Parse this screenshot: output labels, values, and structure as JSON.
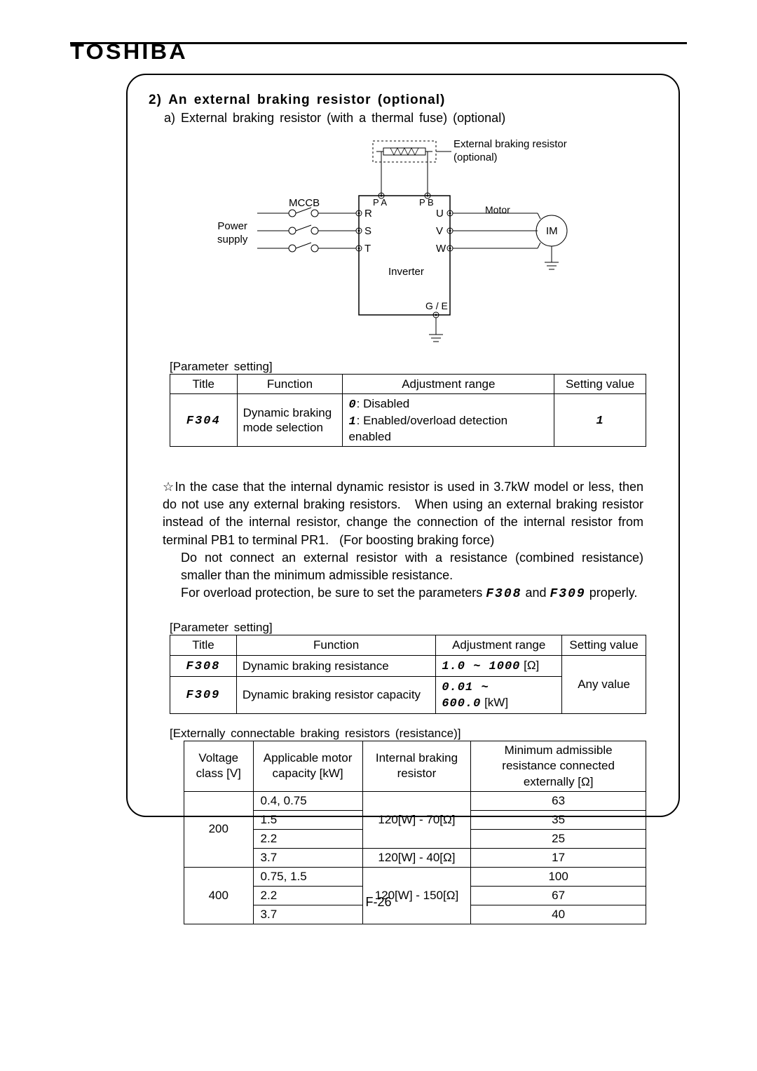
{
  "brand": "TOSHIBA",
  "section": {
    "num": "2)",
    "title": "An external braking resistor (optional)",
    "sub": "a) External braking resistor (with a thermal fuse) (optional)"
  },
  "diagram": {
    "power_supply": "Power\nsupply",
    "mccb": "MCCB",
    "r": "R",
    "s": "S",
    "t": "T",
    "u": "U",
    "v": "V",
    "w": "W",
    "pa": "P A",
    "pb": "P B",
    "inverter": "Inverter",
    "ge": "G / E",
    "motor": "Motor",
    "im": "IM",
    "ext_label": "External braking resistor (optional)",
    "colors": {
      "line": "#000000",
      "dash": "#000000"
    }
  },
  "param1_label": "[Parameter setting]",
  "param1": {
    "headers": [
      "Title",
      "Function",
      "Adjustment range",
      "Setting value"
    ],
    "title": "F304",
    "function": "Dynamic braking mode selection",
    "range_line1_code": "0",
    "range_line1_rest": ": Disabled",
    "range_line2_code": "1",
    "range_line2_rest": ": Enabled/overload detection enabled",
    "setting": "1"
  },
  "note": {
    "star": "☆",
    "p1": "In the case that the internal dynamic resistor is used in 3.7kW model or less, then do not use any external braking resistors.   When using an external braking resistor instead of the internal resistor, change the connection of the internal resistor from terminal PB1 to terminal PR1.   (For boosting braking force)",
    "p2": "Do not connect an external resistor with a resistance (combined resistance) smaller than the minimum admissible resistance.",
    "p3a": "For overload protection, be sure to set the parameters ",
    "p3code1": "F308",
    "p3mid": " and ",
    "p3code2": "F309",
    "p3b": " properly."
  },
  "param2_label": "[Parameter setting]",
  "param2": {
    "headers": [
      "Title",
      "Function",
      "Adjustment range",
      "Setting value"
    ],
    "rows": [
      {
        "title": "F308",
        "function": "Dynamic braking resistance",
        "range": "1.0 ~ 1000",
        "unit": "[Ω]"
      },
      {
        "title": "F309",
        "function": "Dynamic braking resistor capacity",
        "range": "0.01 ~ 600.0",
        "unit": "[kW]"
      }
    ],
    "setting": "Any value"
  },
  "reslabel": "[Externally connectable braking resistors (resistance)]",
  "restable": {
    "headers": [
      "Voltage class [V]",
      "Applicable motor capacity [kW]",
      "Internal braking resistor",
      "Minimum admissible resistance connected externally [Ω]"
    ],
    "groups": [
      {
        "voltage": "200",
        "rows": [
          {
            "cap": "0.4, 0.75",
            "int": "120[W] - 70[Ω]",
            "min": "63",
            "int_span": 3
          },
          {
            "cap": "1.5",
            "int": null,
            "min": "35"
          },
          {
            "cap": "2.2",
            "int": null,
            "min": "25"
          },
          {
            "cap": "3.7",
            "int": "120[W] - 40[Ω]",
            "min": "17",
            "int_span": 1
          }
        ]
      },
      {
        "voltage": "400",
        "rows": [
          {
            "cap": "0.75, 1.5",
            "int": "120[W] - 150[Ω]",
            "min": "100",
            "int_span": 3
          },
          {
            "cap": "2.2",
            "int": null,
            "min": "67"
          },
          {
            "cap": "3.7",
            "int": null,
            "min": "40"
          }
        ]
      }
    ]
  },
  "footer": "F-26"
}
